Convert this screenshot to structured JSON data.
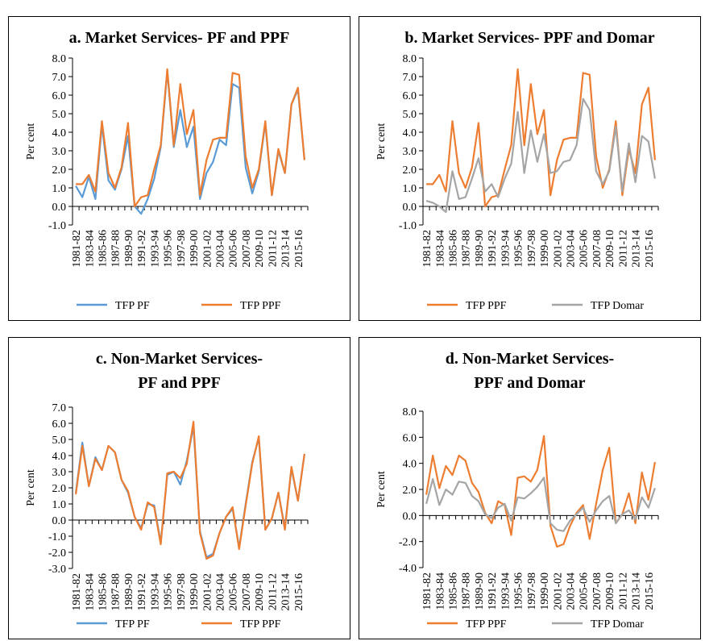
{
  "chart_data": [
    {
      "type": "line",
      "title": [
        "a. Market Services- PF and PPF"
      ],
      "ylabel": "Per cent",
      "categories": [
        "1981-82",
        null,
        "1983-84",
        null,
        "1985-86",
        null,
        "1987-88",
        null,
        "1989-90",
        null,
        "1991-92",
        null,
        "1993-94",
        null,
        "1995-96",
        null,
        "1997-98",
        null,
        "1999-00",
        null,
        "2001-02",
        null,
        "2003-04",
        null,
        "2005-06",
        null,
        "2007-08",
        null,
        "2009-10",
        null,
        "2011-12",
        null,
        "2013-14",
        null,
        "2015-16",
        null
      ],
      "series": [
        {
          "name": "TFP PF",
          "color": "#5b9bd5",
          "values": [
            1.1,
            0.5,
            1.6,
            0.4,
            4.4,
            1.4,
            0.9,
            2.0,
            3.8,
            0.0,
            -0.4,
            0.4,
            1.5,
            3.2,
            7.3,
            3.2,
            5.2,
            3.2,
            4.3,
            0.4,
            1.8,
            2.4,
            3.6,
            3.3,
            6.6,
            6.4,
            2.1,
            0.7,
            1.9,
            4.5,
            0.6,
            3.0,
            1.8,
            5.5,
            6.3,
            2.5
          ]
        },
        {
          "name": "TFP PPF",
          "color": "#ed7d31",
          "values": [
            1.2,
            1.2,
            1.7,
            0.8,
            4.6,
            1.8,
            1.0,
            2.1,
            4.5,
            0.0,
            0.5,
            0.6,
            2.0,
            3.3,
            7.4,
            3.3,
            6.6,
            3.9,
            5.2,
            0.6,
            2.5,
            3.6,
            3.7,
            3.7,
            7.2,
            7.1,
            2.7,
            1.0,
            2.0,
            4.6,
            0.6,
            3.1,
            1.8,
            5.5,
            6.4,
            2.5
          ]
        }
      ],
      "ylim": [
        -1,
        8
      ],
      "yticks": [
        {
          "value": -1,
          "label": "-1.0"
        },
        {
          "value": 0,
          "label": "0.0"
        },
        {
          "value": 1,
          "label": "1.0"
        },
        {
          "value": 2,
          "label": "2.0"
        },
        {
          "value": 3,
          "label": "3.0"
        },
        {
          "value": 4,
          "label": "4.0"
        },
        {
          "value": 5,
          "label": "5.0"
        },
        {
          "value": 6,
          "label": "6.0"
        },
        {
          "value": 7,
          "label": "7.0"
        },
        {
          "value": 8,
          "label": "8.0"
        }
      ]
    },
    {
      "type": "line",
      "title": [
        "b. Market Services- PPF and Domar"
      ],
      "ylabel": "Per cent",
      "categories": [
        "1981-82",
        null,
        "1983-84",
        null,
        "1985-86",
        null,
        "1987-88",
        null,
        "1989-90",
        null,
        "1991-92",
        null,
        "1993-94",
        null,
        "1995-96",
        null,
        "1997-98",
        null,
        "1999-00",
        null,
        "2001-02",
        null,
        "2003-04",
        null,
        "2005-06",
        null,
        "2007-08",
        null,
        "2009-10",
        null,
        "2011-12",
        null,
        "2013-14",
        null,
        "2015-16",
        null
      ],
      "series": [
        {
          "name": "TFP PPF",
          "color": "#ed7d31",
          "values": [
            1.2,
            1.2,
            1.7,
            0.8,
            4.6,
            1.8,
            1.0,
            2.1,
            4.5,
            0.0,
            0.5,
            0.6,
            2.0,
            3.3,
            7.4,
            3.3,
            6.6,
            3.9,
            5.2,
            0.6,
            2.5,
            3.6,
            3.7,
            3.7,
            7.2,
            7.1,
            2.7,
            1.0,
            2.0,
            4.6,
            0.6,
            3.1,
            1.8,
            5.5,
            6.4,
            2.5
          ]
        },
        {
          "name": "TFP Domar",
          "color": "#a5a5a5",
          "values": [
            0.3,
            0.2,
            0.0,
            -0.3,
            1.9,
            0.4,
            0.5,
            1.5,
            2.6,
            0.8,
            1.2,
            0.5,
            1.5,
            2.3,
            5.1,
            1.8,
            4.1,
            2.4,
            3.9,
            1.8,
            1.9,
            2.4,
            2.5,
            3.3,
            5.8,
            5.2,
            1.9,
            1.2,
            1.9,
            4.3,
            0.8,
            3.4,
            1.3,
            3.8,
            3.5,
            1.5
          ]
        }
      ],
      "ylim": [
        -1,
        8
      ],
      "yticks": [
        {
          "value": -1,
          "label": "-1.0"
        },
        {
          "value": 0,
          "label": "0.0"
        },
        {
          "value": 1,
          "label": "1.0"
        },
        {
          "value": 2,
          "label": "2.0"
        },
        {
          "value": 3,
          "label": "3.0"
        },
        {
          "value": 4,
          "label": "4.0"
        },
        {
          "value": 5,
          "label": "5.0"
        },
        {
          "value": 6,
          "label": "6.0"
        },
        {
          "value": 7,
          "label": "7.0"
        },
        {
          "value": 8,
          "label": "8.0"
        }
      ]
    },
    {
      "type": "line",
      "title": [
        "c. Non-Market Services-",
        "PF and PPF"
      ],
      "ylabel": "Per cent",
      "categories": [
        "1981-82",
        null,
        "1983-84",
        null,
        "1985-86",
        null,
        "1987-88",
        null,
        "1989-90",
        null,
        "1991-92",
        null,
        "1993-94",
        null,
        "1995-96",
        null,
        "1997-98",
        null,
        "1999-00",
        null,
        "2001-02",
        null,
        "2003-04",
        null,
        "2005-06",
        null,
        "2007-08",
        null,
        "2009-10",
        null,
        "2011-12",
        null,
        "2013-14",
        null,
        "2015-16",
        null
      ],
      "series": [
        {
          "name": "TFP PF",
          "color": "#5b9bd5",
          "values": [
            1.7,
            4.8,
            2.1,
            3.9,
            3.1,
            4.6,
            4.2,
            2.5,
            1.7,
            0.2,
            -0.5,
            1.0,
            0.9,
            -1.4,
            2.8,
            3.0,
            2.2,
            3.7,
            5.8,
            -0.7,
            -2.3,
            -2.1,
            -0.8,
            0.2,
            0.7,
            -1.7,
            1.0,
            3.6,
            5.1,
            -0.6,
            0.1,
            1.7,
            -0.5,
            3.2,
            1.2,
            4.1
          ]
        },
        {
          "name": "TFP PPF",
          "color": "#ed7d31",
          "values": [
            1.6,
            4.6,
            2.1,
            3.8,
            3.1,
            4.6,
            4.2,
            2.5,
            1.8,
            0.2,
            -0.6,
            1.1,
            0.8,
            -1.5,
            2.9,
            3.0,
            2.6,
            3.5,
            6.1,
            -0.8,
            -2.4,
            -2.2,
            -0.8,
            0.2,
            0.8,
            -1.8,
            0.9,
            3.5,
            5.2,
            -0.6,
            0.1,
            1.7,
            -0.6,
            3.3,
            1.2,
            4.1
          ]
        }
      ],
      "ylim": [
        -3,
        7
      ],
      "yticks": [
        {
          "value": -3,
          "label": "-3.0"
        },
        {
          "value": -2,
          "label": "-2.0"
        },
        {
          "value": -1,
          "label": "-1.0"
        },
        {
          "value": 0,
          "label": "0.0"
        },
        {
          "value": 1,
          "label": "1.0"
        },
        {
          "value": 2,
          "label": "2.0"
        },
        {
          "value": 3,
          "label": "3.0"
        },
        {
          "value": 4,
          "label": "4.0"
        },
        {
          "value": 5,
          "label": "5.0"
        },
        {
          "value": 6,
          "label": "6.0"
        },
        {
          "value": 7,
          "label": "7.0"
        }
      ]
    },
    {
      "type": "line",
      "title": [
        "d. Non-Market Services-",
        "PPF and Domar"
      ],
      "ylabel": "Per cent",
      "categories": [
        "1981-82",
        null,
        "1983-84",
        null,
        "1985-86",
        null,
        "1987-88",
        null,
        "1989-90",
        null,
        "1991-92",
        null,
        "1993-94",
        null,
        "1995-96",
        null,
        "1997-98",
        null,
        "1999-00",
        null,
        "2001-02",
        null,
        "2003-04",
        null,
        "2005-06",
        null,
        "2007-08",
        null,
        "2009-10",
        null,
        "2011-12",
        null,
        "2013-14",
        null,
        "2015-16",
        null
      ],
      "series": [
        {
          "name": "TFP PPF",
          "color": "#ed7d31",
          "values": [
            1.6,
            4.6,
            2.1,
            3.8,
            3.1,
            4.6,
            4.2,
            2.5,
            1.8,
            0.2,
            -0.6,
            1.1,
            0.8,
            -1.5,
            2.9,
            3.0,
            2.6,
            3.5,
            6.1,
            -0.8,
            -2.4,
            -2.2,
            -0.8,
            0.2,
            0.8,
            -1.8,
            0.9,
            3.5,
            5.2,
            -0.6,
            0.1,
            1.7,
            -0.6,
            3.3,
            1.2,
            4.1
          ]
        },
        {
          "name": "TFP Domar",
          "color": "#a5a5a5",
          "values": [
            0.9,
            2.8,
            0.8,
            2.0,
            1.6,
            2.6,
            2.5,
            1.5,
            1.1,
            0.1,
            -0.2,
            0.6,
            0.9,
            -0.4,
            1.4,
            1.3,
            1.7,
            2.2,
            2.9,
            -0.6,
            -1.1,
            -1.2,
            -0.4,
            0.1,
            0.6,
            -0.5,
            0.4,
            1.1,
            1.5,
            -0.6,
            0.1,
            0.4,
            -0.3,
            1.4,
            0.6,
            2.1
          ]
        }
      ],
      "ylim": [
        -4,
        8
      ],
      "yticks": [
        {
          "value": -4,
          "label": "-4.0"
        },
        {
          "value": -2,
          "label": "-2.0"
        },
        {
          "value": 0,
          "label": "0.0"
        },
        {
          "value": 2,
          "label": "2.0"
        },
        {
          "value": 4,
          "label": "4.0"
        },
        {
          "value": 6,
          "label": "6.0"
        },
        {
          "value": 8,
          "label": "8.0"
        }
      ]
    }
  ]
}
